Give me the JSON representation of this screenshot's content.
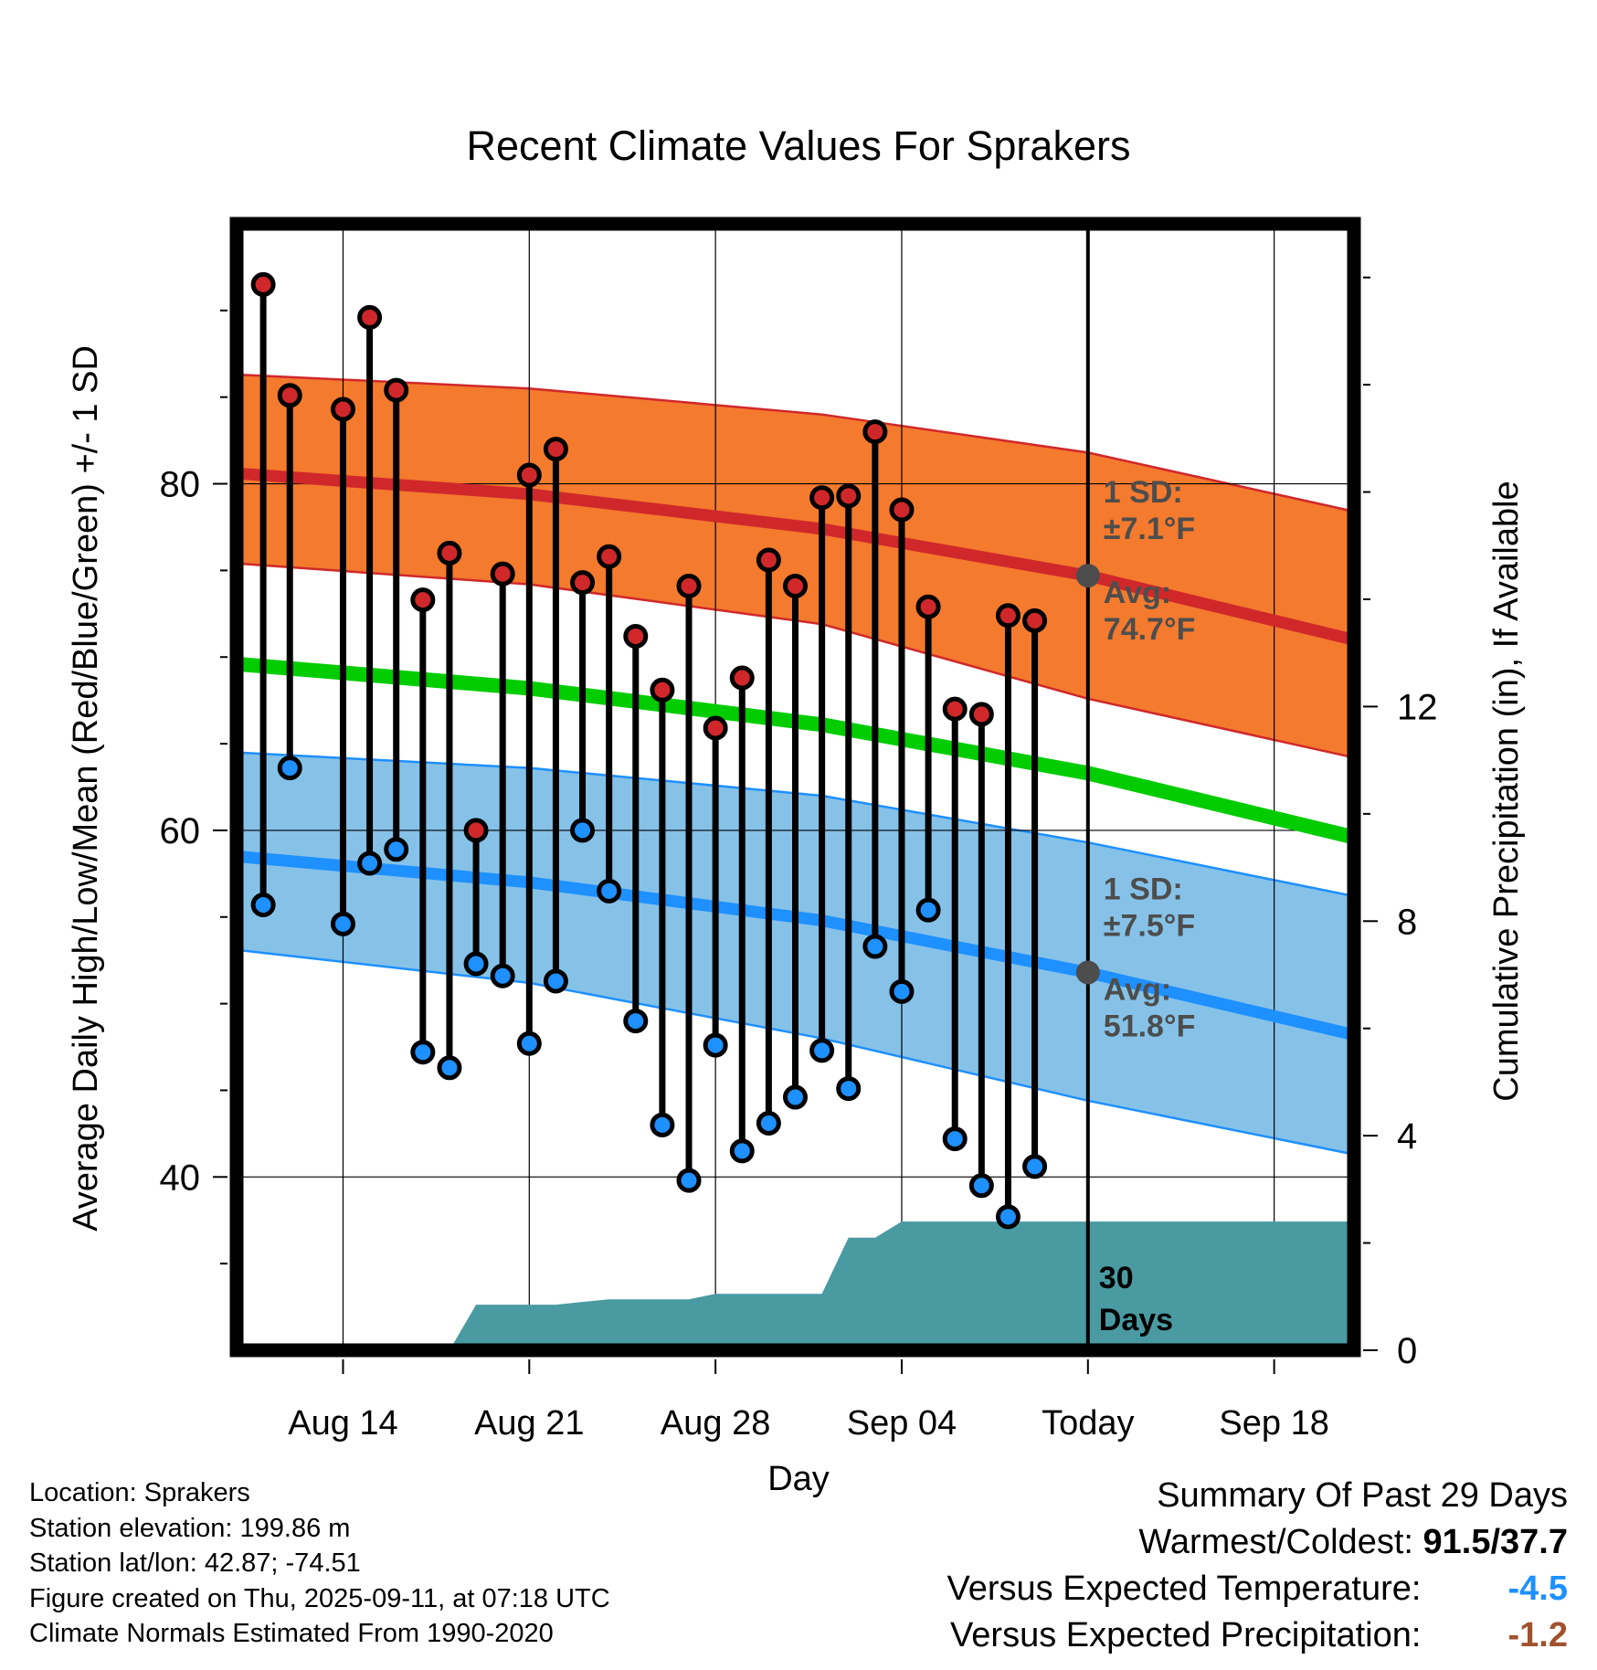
{
  "chart_data": {
    "type": "line",
    "title": "Recent Climate Values For Sprakers",
    "xlabel": "Day",
    "ylabel": "Average Daily High/Low/Mean (Red/Blue/Green) +/- 1 SD",
    "y2label": "Cumulative Precipitation (in), If Available",
    "x_range": [
      "2025-08-10",
      "2025-09-21"
    ],
    "ylim": [
      30,
      95
    ],
    "y2lim": [
      0,
      21
    ],
    "y_ticks": [
      40,
      60,
      80
    ],
    "y2_ticks": [
      0,
      4,
      8,
      12
    ],
    "x_ticks": [
      {
        "date": "2025-08-14",
        "label": "Aug 14"
      },
      {
        "date": "2025-08-21",
        "label": "Aug 21"
      },
      {
        "date": "2025-08-28",
        "label": "Aug 28"
      },
      {
        "date": "2025-09-04",
        "label": "Sep 04"
      },
      {
        "date": "2025-09-11",
        "label": "Today"
      },
      {
        "date": "2025-09-18",
        "label": "Sep 18"
      }
    ],
    "grid": true,
    "today_date": "2025-09-11",
    "normals": {
      "high_mean": [
        {
          "x": "2025-08-10",
          "y": 80.6
        },
        {
          "x": "2025-08-21",
          "y": 79.4
        },
        {
          "x": "2025-09-01",
          "y": 77.4
        },
        {
          "x": "2025-09-11",
          "y": 74.7
        },
        {
          "x": "2025-09-21",
          "y": 71.0
        }
      ],
      "high_upper": [
        {
          "x": "2025-08-10",
          "y": 86.3
        },
        {
          "x": "2025-08-21",
          "y": 85.5
        },
        {
          "x": "2025-09-01",
          "y": 84.0
        },
        {
          "x": "2025-09-11",
          "y": 81.8
        },
        {
          "x": "2025-09-21",
          "y": 78.4
        }
      ],
      "high_lower": [
        {
          "x": "2025-08-10",
          "y": 75.4
        },
        {
          "x": "2025-08-21",
          "y": 74.2
        },
        {
          "x": "2025-09-01",
          "y": 71.9
        },
        {
          "x": "2025-09-11",
          "y": 67.6
        },
        {
          "x": "2025-09-21",
          "y": 64.2
        }
      ],
      "mean": [
        {
          "x": "2025-08-10",
          "y": 69.6
        },
        {
          "x": "2025-08-21",
          "y": 68.2
        },
        {
          "x": "2025-09-01",
          "y": 66.1
        },
        {
          "x": "2025-09-11",
          "y": 63.3
        },
        {
          "x": "2025-09-21",
          "y": 59.6
        }
      ],
      "low_mean": [
        {
          "x": "2025-08-10",
          "y": 58.5
        },
        {
          "x": "2025-08-21",
          "y": 57.0
        },
        {
          "x": "2025-09-01",
          "y": 54.8
        },
        {
          "x": "2025-09-11",
          "y": 51.8
        },
        {
          "x": "2025-09-21",
          "y": 48.2
        }
      ],
      "low_upper": [
        {
          "x": "2025-08-10",
          "y": 64.5
        },
        {
          "x": "2025-08-21",
          "y": 63.6
        },
        {
          "x": "2025-09-01",
          "y": 62.0
        },
        {
          "x": "2025-09-11",
          "y": 59.3
        },
        {
          "x": "2025-09-21",
          "y": 56.2
        }
      ],
      "low_lower": [
        {
          "x": "2025-08-10",
          "y": 53.1
        },
        {
          "x": "2025-08-21",
          "y": 51.2
        },
        {
          "x": "2025-09-01",
          "y": 48.0
        },
        {
          "x": "2025-09-11",
          "y": 44.4
        },
        {
          "x": "2025-09-21",
          "y": 41.3
        }
      ]
    },
    "daily": [
      {
        "date": "2025-08-11",
        "high": 91.5,
        "low": 55.7
      },
      {
        "date": "2025-08-12",
        "high": 85.1,
        "low": 63.6
      },
      {
        "date": "2025-08-14",
        "high": 84.3,
        "low": 54.6
      },
      {
        "date": "2025-08-15",
        "high": 89.6,
        "low": 58.1
      },
      {
        "date": "2025-08-16",
        "high": 85.4,
        "low": 58.9
      },
      {
        "date": "2025-08-17",
        "high": 73.3,
        "low": 47.2
      },
      {
        "date": "2025-08-18",
        "high": 76.0,
        "low": 46.3
      },
      {
        "date": "2025-08-19",
        "high": 60.0,
        "low": 52.3
      },
      {
        "date": "2025-08-20",
        "high": 74.8,
        "low": 51.6
      },
      {
        "date": "2025-08-21",
        "high": 80.5,
        "low": 47.7
      },
      {
        "date": "2025-08-22",
        "high": 82.0,
        "low": 51.3
      },
      {
        "date": "2025-08-23",
        "high": 74.3,
        "low": 60.0
      },
      {
        "date": "2025-08-24",
        "high": 75.8,
        "low": 56.5
      },
      {
        "date": "2025-08-25",
        "high": 71.2,
        "low": 49.0
      },
      {
        "date": "2025-08-26",
        "high": 68.1,
        "low": 43.0
      },
      {
        "date": "2025-08-27",
        "high": 74.1,
        "low": 39.8
      },
      {
        "date": "2025-08-28",
        "high": 65.9,
        "low": 47.6
      },
      {
        "date": "2025-08-29",
        "high": 68.8,
        "low": 41.5
      },
      {
        "date": "2025-08-30",
        "high": 75.6,
        "low": 43.1
      },
      {
        "date": "2025-08-31",
        "high": 74.1,
        "low": 44.6
      },
      {
        "date": "2025-09-01",
        "high": 79.2,
        "low": 47.3
      },
      {
        "date": "2025-09-02",
        "high": 79.3,
        "low": 45.1
      },
      {
        "date": "2025-09-03",
        "high": 83.0,
        "low": 53.3
      },
      {
        "date": "2025-09-04",
        "high": 78.5,
        "low": 50.7
      },
      {
        "date": "2025-09-05",
        "high": 72.9,
        "low": 55.4
      },
      {
        "date": "2025-09-06",
        "high": 67.0,
        "low": 42.2
      },
      {
        "date": "2025-09-07",
        "high": 66.7,
        "low": 39.5
      },
      {
        "date": "2025-09-08",
        "high": 72.4,
        "low": 37.7
      },
      {
        "date": "2025-09-09",
        "high": 72.1,
        "low": 40.6
      }
    ],
    "cumulative_precip": [
      {
        "x": "2025-08-10",
        "y": 0.0
      },
      {
        "x": "2025-08-18",
        "y": 0.0
      },
      {
        "x": "2025-08-19",
        "y": 0.85
      },
      {
        "x": "2025-08-22",
        "y": 0.85
      },
      {
        "x": "2025-08-24",
        "y": 0.95
      },
      {
        "x": "2025-08-27",
        "y": 0.95
      },
      {
        "x": "2025-08-28",
        "y": 1.05
      },
      {
        "x": "2025-09-01",
        "y": 1.05
      },
      {
        "x": "2025-09-02",
        "y": 2.1
      },
      {
        "x": "2025-09-03",
        "y": 2.1
      },
      {
        "x": "2025-09-04",
        "y": 2.4
      },
      {
        "x": "2025-09-21",
        "y": 2.4
      }
    ],
    "annotations": {
      "high_sd": "1 SD:",
      "high_sd_value": "±7.1°F",
      "high_avg": "Avg:",
      "high_avg_value": "74.7°F",
      "low_sd": "1 SD:",
      "low_sd_value": "±7.5°F",
      "low_avg": "Avg:",
      "low_avg_value": "51.8°F",
      "window_days": "30",
      "window_label": "Days"
    }
  },
  "colors": {
    "high_band": "#f47a2e",
    "high_line": "#d0282a",
    "mean_line": "#00cc00",
    "low_band": "#86c2e8",
    "low_line": "#1e90ff",
    "high_marker": "#d0282a",
    "low_marker": "#1e90ff",
    "precip": "#4a9aa2",
    "annotation": "#4d4d4d",
    "summary_temp": "#1e90ff",
    "summary_precip": "#a0522d"
  },
  "info": {
    "location": "Location: Sprakers",
    "elevation": "Station elevation: 199.86 m",
    "latlon": "Station lat/lon: 42.87; -74.51",
    "created": "Figure created on Thu, 2025-09-11, at 07:18 UTC",
    "normals": "Climate Normals Estimated From 1990-2020"
  },
  "summary": {
    "title": "Summary Of Past 29 Days",
    "warm_cold_label": "Warmest/Coldest:",
    "warm_cold_value": "91.5/37.7",
    "temp_label": "Versus Expected Temperature:",
    "temp_value": "-4.5",
    "precip_label": "Versus Expected Precipitation:",
    "precip_value": "-1.2"
  }
}
